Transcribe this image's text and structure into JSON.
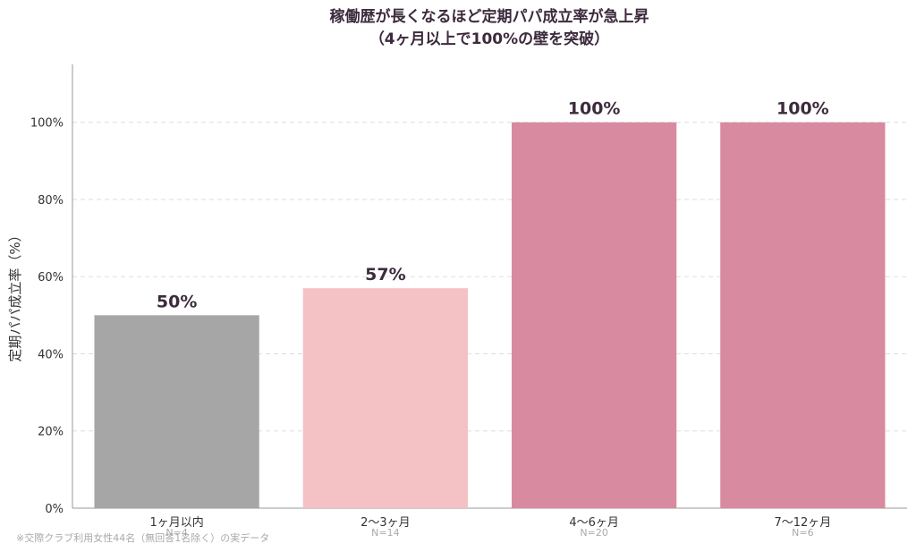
{
  "chart_data": {
    "type": "bar",
    "title": "稼働歴が長くなるほど定期パパ成立率が急上昇",
    "subtitle": "（4ヶ月以上で100%の壁を突破）",
    "xlabel": "",
    "ylabel": "定期パパ成立率（%）",
    "ylim": [
      0,
      115
    ],
    "yticks": [
      0,
      20,
      40,
      60,
      80,
      100
    ],
    "ytick_labels": [
      "0%",
      "20%",
      "40%",
      "60%",
      "80%",
      "100%"
    ],
    "grid": "y-dashed",
    "categories": [
      "1ヶ月以内",
      "2〜3ヶ月",
      "4〜6ヶ月",
      "7〜12ヶ月"
    ],
    "values": [
      50,
      57,
      100,
      100
    ],
    "value_labels": [
      "50%",
      "57%",
      "100%",
      "100%"
    ],
    "sample_labels": [
      "N=4",
      "N=14",
      "N=20",
      "N=6"
    ],
    "colors": [
      "#a6a6a6",
      "#f4c2c4",
      "#d88aa1",
      "#d88aa1"
    ],
    "footnote": "※交際クラブ利用女性44名（無回答1名除く）の実データ"
  }
}
